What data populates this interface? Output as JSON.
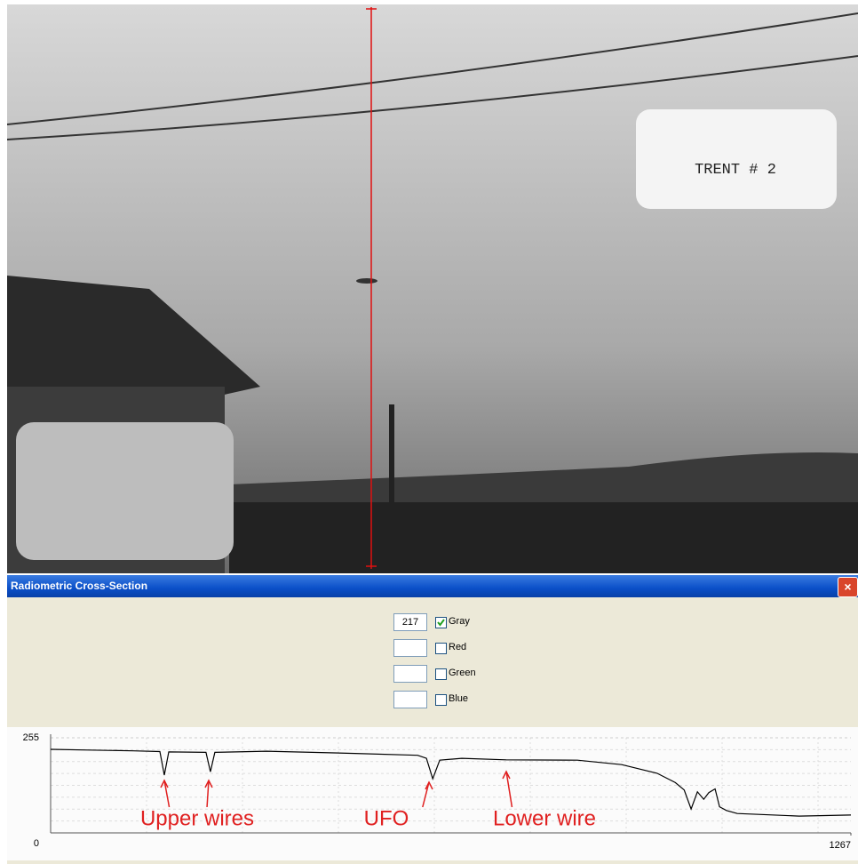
{
  "photo": {
    "label": "TRENT # 2"
  },
  "dialog": {
    "title": "Radiometric Cross-Section",
    "channels": [
      {
        "value": "217",
        "label": "Gray",
        "checked": true
      },
      {
        "label": "Red",
        "checked": false
      },
      {
        "label": "Green",
        "checked": false
      },
      {
        "label": "Blue",
        "checked": false
      }
    ]
  },
  "chart_data": {
    "type": "line",
    "color": "#000000",
    "x": [
      0,
      60,
      131,
      173,
      180,
      187,
      246,
      253,
      260,
      342,
      482,
      581,
      595,
      605,
      616,
      651,
      721,
      834,
      904,
      960,
      989,
      1003,
      1014,
      1024,
      1034,
      1042,
      1052,
      1059,
      1070,
      1087,
      1185,
      1267
    ],
    "values": [
      224,
      222,
      220,
      218,
      155,
      217,
      216,
      164,
      216,
      219,
      213,
      208,
      200,
      145,
      195,
      200,
      196,
      195,
      183,
      160,
      135,
      115,
      64,
      110,
      90,
      108,
      118,
      70,
      60,
      52,
      45,
      48
    ],
    "xlim": [
      0,
      1267
    ],
    "xticks": [
      1267
    ],
    "ylim": [
      0,
      255
    ],
    "yticks": [
      0,
      255
    ],
    "grid": true,
    "annotations": [
      "Upper wires",
      "UFO",
      "Lower wire"
    ],
    "annotation_color": "#e02020"
  }
}
